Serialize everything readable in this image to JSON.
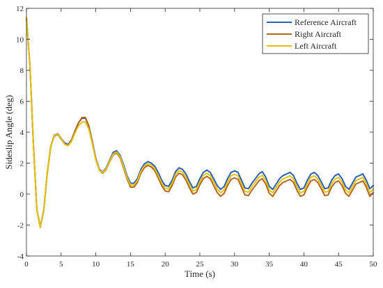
{
  "chart_data": {
    "type": "line",
    "title": "",
    "xlabel": "Time (s)",
    "ylabel": "Sideslip Angle (deg)",
    "xlim": [
      0,
      50
    ],
    "ylim": [
      -4,
      12
    ],
    "xticks": [
      0,
      5,
      10,
      15,
      20,
      25,
      30,
      35,
      40,
      45,
      50
    ],
    "yticks": [
      -4,
      -2,
      0,
      2,
      4,
      6,
      8,
      10,
      12
    ],
    "x_tick_labels": [
      "0",
      "5",
      "10",
      "15",
      "20",
      "25",
      "30",
      "35",
      "40",
      "45",
      "50"
    ],
    "y_tick_labels": [
      "-4",
      "-2",
      "0",
      "2",
      "4",
      "6",
      "8",
      "10",
      "12"
    ],
    "grid": false,
    "legend_position": "top-right",
    "series": [
      {
        "name": "Reference Aircraft",
        "color": "#2b5fb4",
        "points": [
          [
            0,
            11.4
          ],
          [
            0.5,
            8.3
          ],
          [
            1.0,
            3.2
          ],
          [
            1.5,
            -1.0
          ],
          [
            2.0,
            -2.1
          ],
          [
            2.5,
            -1.0
          ],
          [
            3.0,
            1.4
          ],
          [
            3.5,
            3.1
          ],
          [
            4.0,
            3.8
          ],
          [
            4.5,
            3.9
          ],
          [
            5.0,
            3.6
          ],
          [
            5.5,
            3.3
          ],
          [
            6.0,
            3.2
          ],
          [
            6.5,
            3.5
          ],
          [
            7.0,
            4.1
          ],
          [
            7.5,
            4.6
          ],
          [
            8.0,
            4.9
          ],
          [
            8.5,
            4.9
          ],
          [
            9.0,
            4.4
          ],
          [
            9.5,
            3.4
          ],
          [
            10.0,
            2.3
          ],
          [
            10.5,
            1.6
          ],
          [
            11.0,
            1.4
          ],
          [
            11.5,
            1.7
          ],
          [
            12.0,
            2.2
          ],
          [
            12.5,
            2.7
          ],
          [
            13.0,
            2.8
          ],
          [
            13.5,
            2.5
          ],
          [
            14.0,
            1.9
          ],
          [
            14.5,
            1.2
          ],
          [
            15.0,
            0.7
          ],
          [
            15.5,
            0.7
          ],
          [
            16.0,
            1.0
          ],
          [
            16.5,
            1.6
          ],
          [
            17.0,
            1.95
          ],
          [
            17.5,
            2.1
          ],
          [
            18.0,
            2.0
          ],
          [
            18.5,
            1.8
          ],
          [
            19.0,
            1.4
          ],
          [
            19.5,
            0.9
          ],
          [
            20.0,
            0.55
          ],
          [
            20.5,
            0.5
          ],
          [
            21.0,
            0.9
          ],
          [
            21.5,
            1.45
          ],
          [
            22.0,
            1.7
          ],
          [
            22.5,
            1.6
          ],
          [
            23.0,
            1.3
          ],
          [
            23.5,
            0.8
          ],
          [
            24.0,
            0.4
          ],
          [
            24.5,
            0.5
          ],
          [
            25.0,
            1.0
          ],
          [
            25.5,
            1.4
          ],
          [
            26.0,
            1.55
          ],
          [
            26.5,
            1.4
          ],
          [
            27.0,
            1.0
          ],
          [
            27.5,
            0.55
          ],
          [
            28.0,
            0.3
          ],
          [
            28.5,
            0.5
          ],
          [
            29.0,
            1.0
          ],
          [
            29.5,
            1.4
          ],
          [
            30.0,
            1.5
          ],
          [
            30.5,
            1.4
          ],
          [
            31.0,
            0.9
          ],
          [
            31.5,
            0.4
          ],
          [
            32.0,
            0.35
          ],
          [
            32.5,
            0.7
          ],
          [
            33.0,
            1.0
          ],
          [
            33.5,
            1.3
          ],
          [
            34.0,
            1.45
          ],
          [
            34.5,
            1.1
          ],
          [
            35.0,
            0.5
          ],
          [
            35.5,
            0.3
          ],
          [
            36.0,
            0.65
          ],
          [
            36.5,
            1.0
          ],
          [
            37.0,
            1.2
          ],
          [
            37.5,
            1.3
          ],
          [
            38.0,
            1.4
          ],
          [
            38.5,
            1.2
          ],
          [
            39.0,
            0.7
          ],
          [
            39.5,
            0.3
          ],
          [
            40.0,
            0.4
          ],
          [
            40.5,
            0.9
          ],
          [
            41.0,
            1.3
          ],
          [
            41.5,
            1.4
          ],
          [
            42.0,
            1.2
          ],
          [
            42.5,
            0.8
          ],
          [
            43.0,
            0.35
          ],
          [
            43.5,
            0.4
          ],
          [
            44.0,
            0.9
          ],
          [
            44.5,
            1.2
          ],
          [
            45.0,
            1.3
          ],
          [
            45.5,
            1.0
          ],
          [
            46.0,
            0.5
          ],
          [
            46.5,
            0.3
          ],
          [
            47.0,
            0.7
          ],
          [
            47.5,
            1.1
          ],
          [
            48.0,
            1.2
          ],
          [
            48.5,
            1.3
          ],
          [
            49.0,
            0.9
          ],
          [
            49.5,
            0.35
          ],
          [
            50.0,
            0.55
          ]
        ]
      },
      {
        "name": "Right Aircraft",
        "color": "#b5651d",
        "points": [
          [
            0,
            11.4
          ],
          [
            0.5,
            8.3
          ],
          [
            1.0,
            3.2
          ],
          [
            1.5,
            -1.0
          ],
          [
            2.0,
            -2.15
          ],
          [
            2.5,
            -1.05
          ],
          [
            3.0,
            1.35
          ],
          [
            3.5,
            3.05
          ],
          [
            4.0,
            3.75
          ],
          [
            4.5,
            3.85
          ],
          [
            5.0,
            3.55
          ],
          [
            5.5,
            3.25
          ],
          [
            6.0,
            3.15
          ],
          [
            6.5,
            3.45
          ],
          [
            7.0,
            4.05
          ],
          [
            7.5,
            4.6
          ],
          [
            8.0,
            4.95
          ],
          [
            8.5,
            4.95
          ],
          [
            9.0,
            4.4
          ],
          [
            9.5,
            3.35
          ],
          [
            10.0,
            2.25
          ],
          [
            10.5,
            1.55
          ],
          [
            11.0,
            1.35
          ],
          [
            11.5,
            1.6
          ],
          [
            12.0,
            2.1
          ],
          [
            12.5,
            2.55
          ],
          [
            13.0,
            2.65
          ],
          [
            13.5,
            2.35
          ],
          [
            14.0,
            1.7
          ],
          [
            14.5,
            1.0
          ],
          [
            15.0,
            0.45
          ],
          [
            15.5,
            0.45
          ],
          [
            16.0,
            0.75
          ],
          [
            16.5,
            1.35
          ],
          [
            17.0,
            1.7
          ],
          [
            17.5,
            1.85
          ],
          [
            18.0,
            1.75
          ],
          [
            18.5,
            1.5
          ],
          [
            19.0,
            1.05
          ],
          [
            19.5,
            0.55
          ],
          [
            20.0,
            0.2
          ],
          [
            20.5,
            0.15
          ],
          [
            21.0,
            0.55
          ],
          [
            21.5,
            1.1
          ],
          [
            22.0,
            1.35
          ],
          [
            22.5,
            1.25
          ],
          [
            23.0,
            0.9
          ],
          [
            23.5,
            0.4
          ],
          [
            24.0,
            0.0
          ],
          [
            24.5,
            0.1
          ],
          [
            25.0,
            0.6
          ],
          [
            25.5,
            1.0
          ],
          [
            26.0,
            1.15
          ],
          [
            26.5,
            1.0
          ],
          [
            27.0,
            0.55
          ],
          [
            27.5,
            0.1
          ],
          [
            28.0,
            -0.15
          ],
          [
            28.5,
            0.05
          ],
          [
            29.0,
            0.55
          ],
          [
            29.5,
            0.95
          ],
          [
            30.0,
            1.05
          ],
          [
            30.5,
            0.95
          ],
          [
            31.0,
            0.45
          ],
          [
            31.5,
            -0.05
          ],
          [
            32.0,
            -0.1
          ],
          [
            32.5,
            0.25
          ],
          [
            33.0,
            0.55
          ],
          [
            33.5,
            0.85
          ],
          [
            34.0,
            1.0
          ],
          [
            34.5,
            0.65
          ],
          [
            35.0,
            0.05
          ],
          [
            35.5,
            -0.15
          ],
          [
            36.0,
            0.2
          ],
          [
            36.5,
            0.55
          ],
          [
            37.0,
            0.75
          ],
          [
            37.5,
            0.85
          ],
          [
            38.0,
            0.95
          ],
          [
            38.5,
            0.75
          ],
          [
            39.0,
            0.25
          ],
          [
            39.5,
            -0.15
          ],
          [
            40.0,
            -0.05
          ],
          [
            40.5,
            0.45
          ],
          [
            41.0,
            0.85
          ],
          [
            41.5,
            0.95
          ],
          [
            42.0,
            0.75
          ],
          [
            42.5,
            0.35
          ],
          [
            43.0,
            -0.1
          ],
          [
            43.5,
            -0.05
          ],
          [
            44.0,
            0.45
          ],
          [
            44.5,
            0.75
          ],
          [
            45.0,
            0.85
          ],
          [
            45.5,
            0.55
          ],
          [
            46.0,
            0.05
          ],
          [
            46.5,
            -0.15
          ],
          [
            47.0,
            0.25
          ],
          [
            47.5,
            0.65
          ],
          [
            48.0,
            0.75
          ],
          [
            48.5,
            0.85
          ],
          [
            49.0,
            0.45
          ],
          [
            49.5,
            -0.15
          ],
          [
            50.0,
            0.1
          ]
        ]
      },
      {
        "name": "Left Aircraft",
        "color": "#e0c20a",
        "points": [
          [
            0,
            11.4
          ],
          [
            0.5,
            8.3
          ],
          [
            1.0,
            3.2
          ],
          [
            1.5,
            -1.0
          ],
          [
            2.0,
            -2.12
          ],
          [
            2.5,
            -1.02
          ],
          [
            3.0,
            1.38
          ],
          [
            3.5,
            3.08
          ],
          [
            4.0,
            3.78
          ],
          [
            4.5,
            3.88
          ],
          [
            5.0,
            3.58
          ],
          [
            5.5,
            3.22
          ],
          [
            6.0,
            3.12
          ],
          [
            6.5,
            3.4
          ],
          [
            7.0,
            3.95
          ],
          [
            7.5,
            4.4
          ],
          [
            8.0,
            4.65
          ],
          [
            8.5,
            4.65
          ],
          [
            9.0,
            4.2
          ],
          [
            9.5,
            3.25
          ],
          [
            10.0,
            2.2
          ],
          [
            10.5,
            1.55
          ],
          [
            11.0,
            1.38
          ],
          [
            11.5,
            1.65
          ],
          [
            12.0,
            2.15
          ],
          [
            12.5,
            2.6
          ],
          [
            13.0,
            2.72
          ],
          [
            13.5,
            2.42
          ],
          [
            14.0,
            1.8
          ],
          [
            14.5,
            1.1
          ],
          [
            15.0,
            0.58
          ],
          [
            15.5,
            0.58
          ],
          [
            16.0,
            0.88
          ],
          [
            16.5,
            1.48
          ],
          [
            17.0,
            1.82
          ],
          [
            17.5,
            1.97
          ],
          [
            18.0,
            1.88
          ],
          [
            18.5,
            1.65
          ],
          [
            19.0,
            1.22
          ],
          [
            19.5,
            0.72
          ],
          [
            20.0,
            0.38
          ],
          [
            20.5,
            0.33
          ],
          [
            21.0,
            0.72
          ],
          [
            21.5,
            1.28
          ],
          [
            22.0,
            1.52
          ],
          [
            22.5,
            1.42
          ],
          [
            23.0,
            1.1
          ],
          [
            23.5,
            0.6
          ],
          [
            24.0,
            0.2
          ],
          [
            24.5,
            0.3
          ],
          [
            25.0,
            0.8
          ],
          [
            25.5,
            1.2
          ],
          [
            26.0,
            1.35
          ],
          [
            26.5,
            1.2
          ],
          [
            27.0,
            0.78
          ],
          [
            27.5,
            0.33
          ],
          [
            28.0,
            0.08
          ],
          [
            28.5,
            0.28
          ],
          [
            29.0,
            0.78
          ],
          [
            29.5,
            1.18
          ],
          [
            30.0,
            1.28
          ],
          [
            30.5,
            1.18
          ],
          [
            31.0,
            0.68
          ],
          [
            31.5,
            0.18
          ],
          [
            32.0,
            0.13
          ],
          [
            32.5,
            0.48
          ],
          [
            33.0,
            0.78
          ],
          [
            33.5,
            1.08
          ],
          [
            34.0,
            1.22
          ],
          [
            34.5,
            0.88
          ],
          [
            35.0,
            0.28
          ],
          [
            35.5,
            0.08
          ],
          [
            36.0,
            0.43
          ],
          [
            36.5,
            0.78
          ],
          [
            37.0,
            0.98
          ],
          [
            37.5,
            1.08
          ],
          [
            38.0,
            1.18
          ],
          [
            38.5,
            0.98
          ],
          [
            39.0,
            0.48
          ],
          [
            39.5,
            0.08
          ],
          [
            40.0,
            0.18
          ],
          [
            40.5,
            0.68
          ],
          [
            41.0,
            1.08
          ],
          [
            41.5,
            1.18
          ],
          [
            42.0,
            0.98
          ],
          [
            42.5,
            0.58
          ],
          [
            43.0,
            0.13
          ],
          [
            43.5,
            0.18
          ],
          [
            44.0,
            0.68
          ],
          [
            44.5,
            0.98
          ],
          [
            45.0,
            1.08
          ],
          [
            45.5,
            0.78
          ],
          [
            46.0,
            0.28
          ],
          [
            46.5,
            0.08
          ],
          [
            47.0,
            0.48
          ],
          [
            47.5,
            0.88
          ],
          [
            48.0,
            0.98
          ],
          [
            48.5,
            1.08
          ],
          [
            49.0,
            0.68
          ],
          [
            49.5,
            0.1
          ],
          [
            50.0,
            0.32
          ]
        ]
      }
    ]
  }
}
